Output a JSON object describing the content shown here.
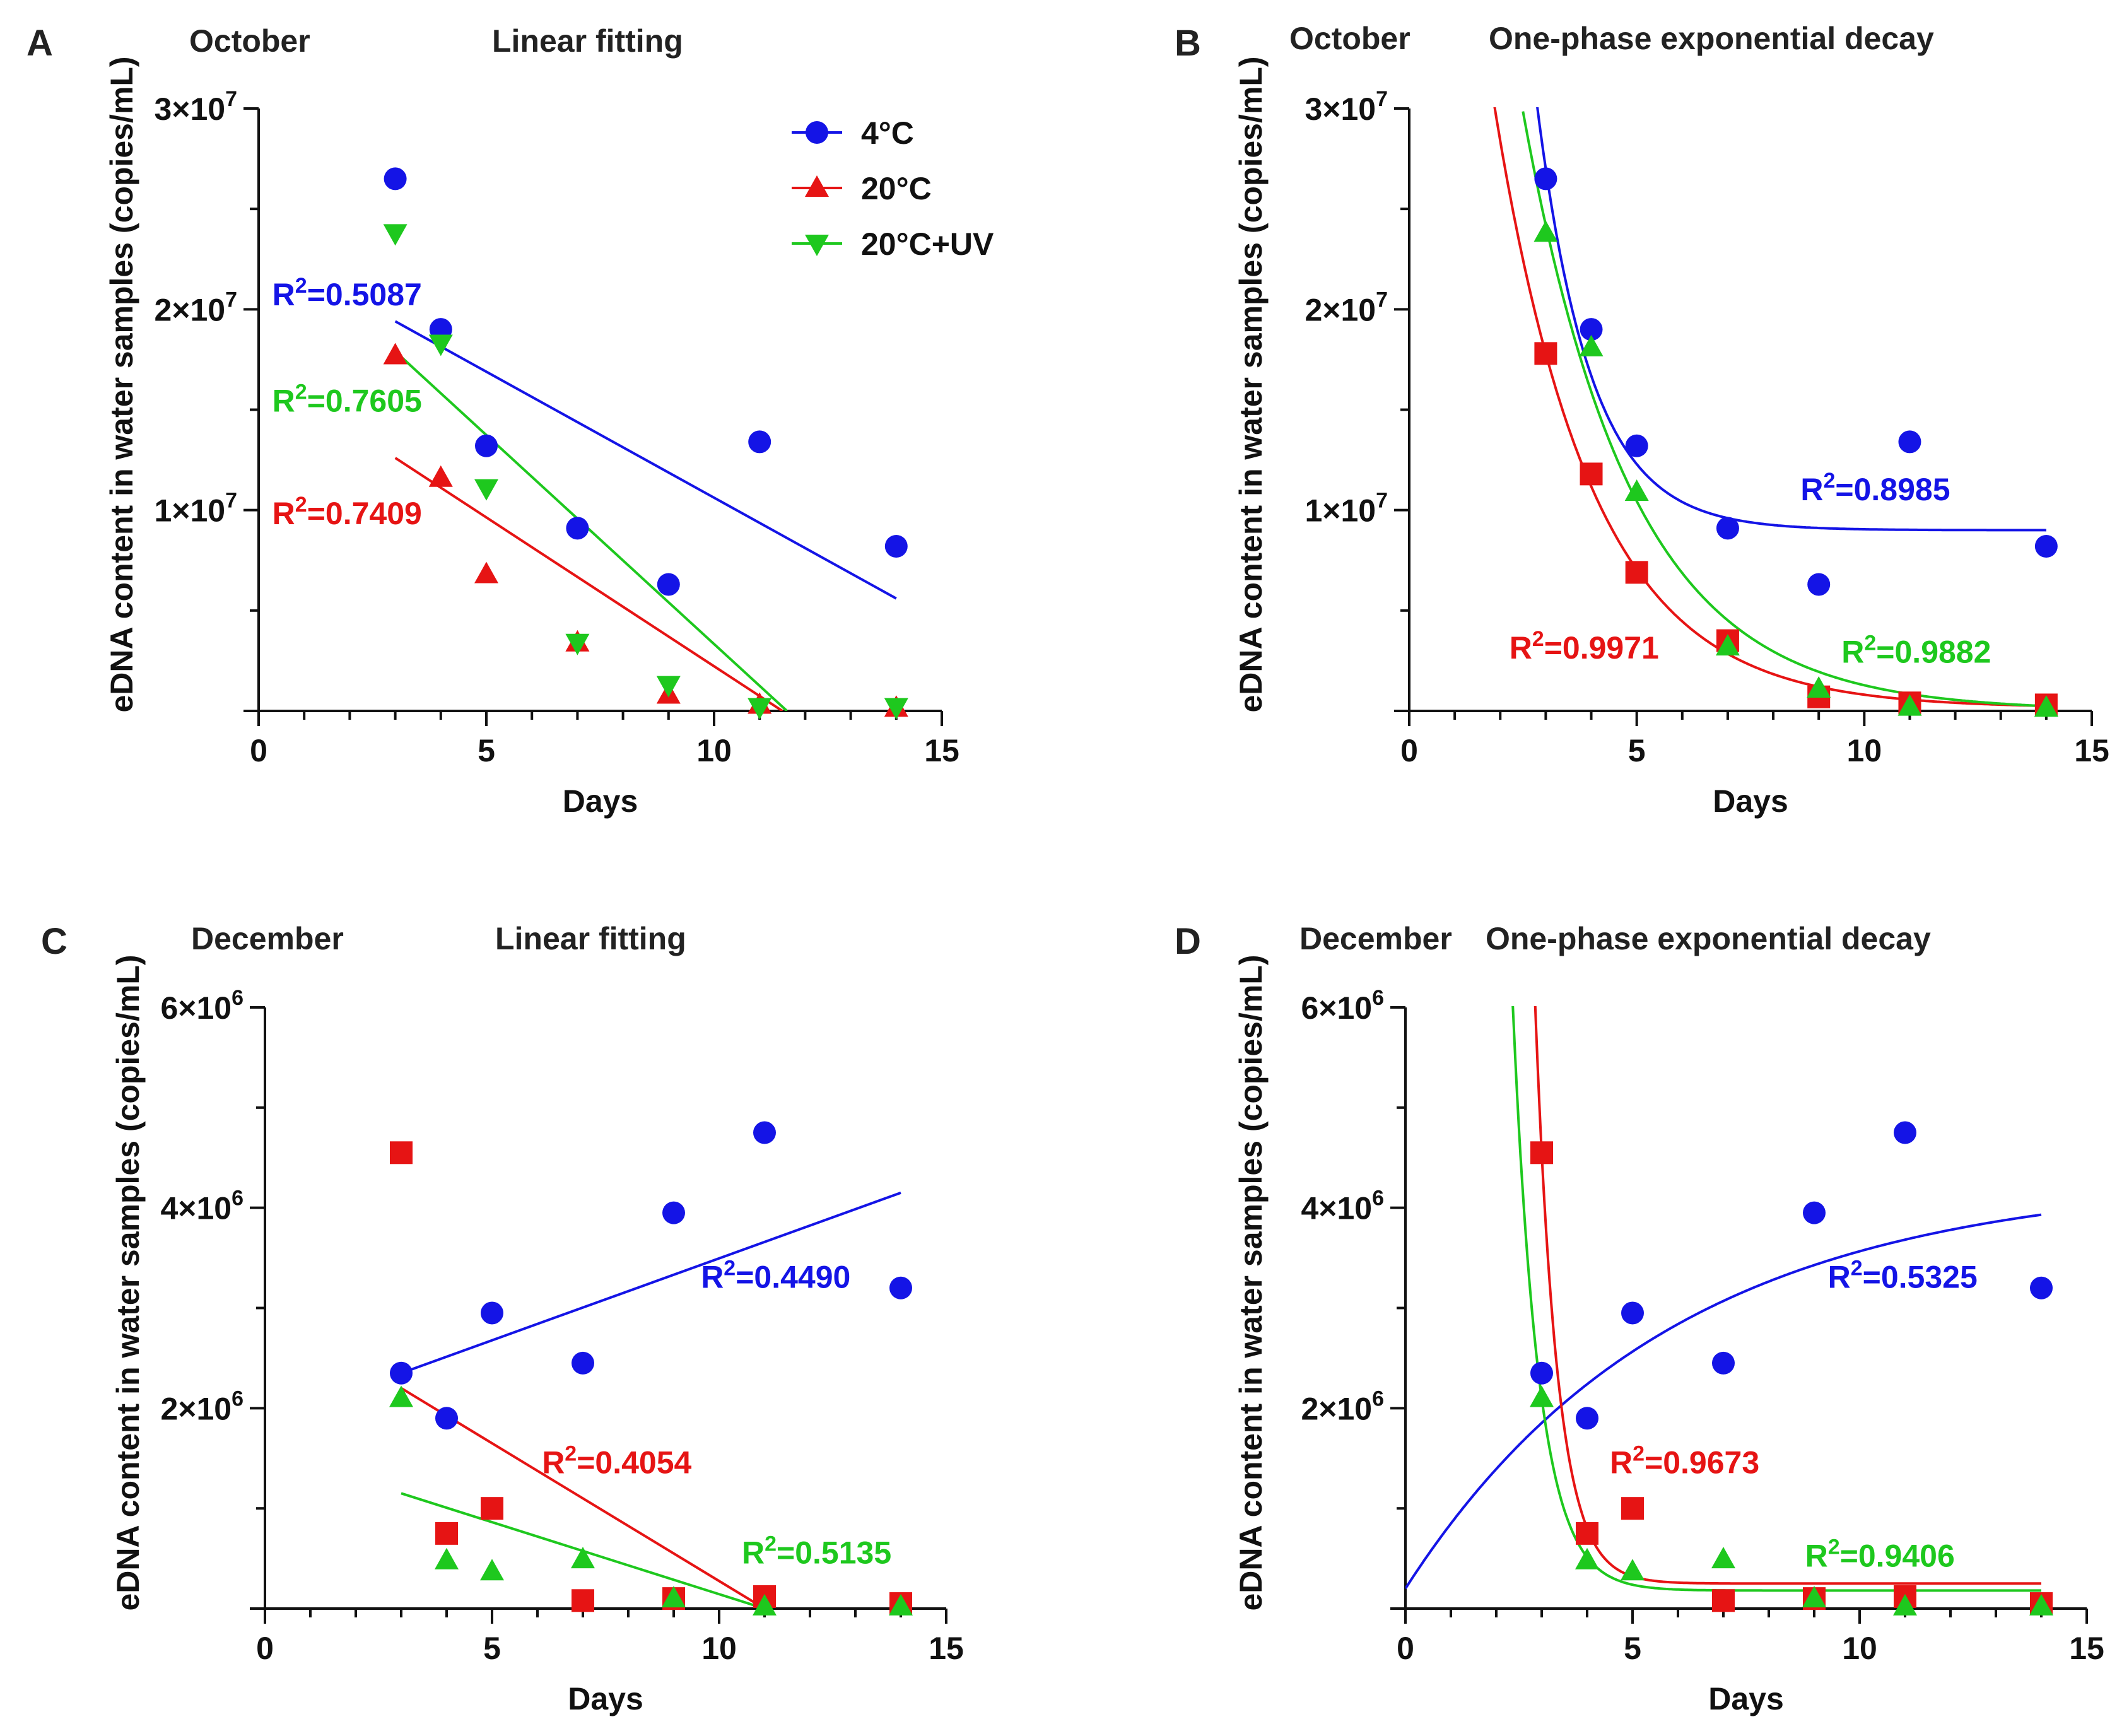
{
  "chart_data": [
    {
      "type": "scatter",
      "panel": "A",
      "month": "October",
      "method": "Linear fitting",
      "xlabel": "Days",
      "ylabel": "eDNA content in water samples (copies/mL)",
      "xlim": [
        0,
        15
      ],
      "ylim": [
        0,
        30000000
      ],
      "xticks": [
        "0",
        "5",
        "10",
        "15"
      ],
      "yticks": [
        {
          "value": 10000000,
          "mantissa": "1×10",
          "exp": "7"
        },
        {
          "value": 20000000,
          "mantissa": "2×10",
          "exp": "7"
        },
        {
          "value": 30000000,
          "mantissa": "3×10",
          "exp": "7"
        }
      ],
      "legend": {
        "position": "top-right",
        "show": true
      },
      "series": [
        {
          "name": "4°C",
          "color": "#1414e6",
          "marker": "circle",
          "x": [
            3,
            4,
            5,
            7,
            9,
            11,
            14
          ],
          "y": [
            26500000,
            19000000,
            13200000,
            9100000,
            6300000,
            13400000,
            8200000
          ],
          "fit": {
            "kind": "linear",
            "x0": 3,
            "x1": 14,
            "y0": 19400000,
            "y1": 5600000
          },
          "r2_text": "=0.5087",
          "r2_x": 0.3,
          "r2_y": 20200000
        },
        {
          "name": "20°C",
          "color": "#e61414",
          "marker": "triangle",
          "x": [
            3,
            4,
            5,
            7,
            9,
            11,
            14
          ],
          "y": [
            17700000,
            11600000,
            6800000,
            3400000,
            800000,
            300000,
            150000
          ],
          "fit": {
            "kind": "linear",
            "x0": 3,
            "x1": 11.5,
            "y0": 12600000,
            "y1": 0
          },
          "r2_text": "=0.7409",
          "r2_x": 0.3,
          "r2_y": 9300000
        },
        {
          "name": "20°C+UV",
          "color": "#1ec81e",
          "marker": "triangle-down",
          "x": [
            3,
            4,
            5,
            7,
            9,
            11,
            14
          ],
          "y": [
            23800000,
            18300000,
            11100000,
            3400000,
            1300000,
            200000,
            200000
          ],
          "fit": {
            "kind": "linear",
            "x0": 3,
            "x1": 11.6,
            "y0": 17900000,
            "y1": 0
          },
          "r2_text": "=0.7605",
          "r2_x": 0.3,
          "r2_y": 14900000
        }
      ]
    },
    {
      "type": "scatter",
      "panel": "B",
      "month": "October",
      "method": "One-phase exponential decay",
      "xlabel": "Days",
      "ylabel": "eDNA content in water samples (copies/mL)",
      "xlim": [
        0,
        15
      ],
      "ylim": [
        0,
        30000000
      ],
      "xticks": [
        "0",
        "5",
        "10",
        "15"
      ],
      "yticks": [
        {
          "value": 10000000,
          "mantissa": "1×10",
          "exp": "7"
        },
        {
          "value": 20000000,
          "mantissa": "2×10",
          "exp": "7"
        },
        {
          "value": 30000000,
          "mantissa": "3×10",
          "exp": "7"
        }
      ],
      "legend": {
        "show": false
      },
      "series": [
        {
          "name": "4°C",
          "color": "#1414e6",
          "marker": "circle",
          "x": [
            3,
            4,
            5,
            7,
            9,
            11,
            14
          ],
          "y": [
            26500000,
            19000000,
            13200000,
            9100000,
            6300000,
            13400000,
            8200000
          ],
          "fit": {
            "kind": "exp",
            "plateau": 9000000,
            "k": 0.85,
            "xref": 3,
            "yref": 27000000,
            "xstart": 2.6,
            "xend": 14
          },
          "r2_text": "=0.8985",
          "r2_x": 8.6,
          "r2_y": 10500000
        },
        {
          "name": "20°C",
          "color": "#e61414",
          "marker": "square",
          "x": [
            3,
            4,
            5,
            7,
            9,
            11,
            14
          ],
          "y": [
            17800000,
            11800000,
            6900000,
            3500000,
            700000,
            400000,
            300000
          ],
          "fit": {
            "kind": "exp",
            "plateau": 150000,
            "k": 0.47,
            "xref": 3,
            "yref": 17800000,
            "xstart": 1.8,
            "xend": 14
          },
          "r2_text": "=0.9971",
          "r2_x": 2.2,
          "r2_y": 2600000
        },
        {
          "name": "20°C+UV",
          "color": "#1ec81e",
          "marker": "triangle",
          "x": [
            3,
            4,
            5,
            7,
            9,
            11,
            14
          ],
          "y": [
            23800000,
            18100000,
            10900000,
            3200000,
            1100000,
            200000,
            150000
          ],
          "fit": {
            "kind": "exp",
            "plateau": 0,
            "k": 0.42,
            "xref": 3,
            "yref": 24200000,
            "xstart": 2.5,
            "xend": 14
          },
          "r2_text": "=0.9882",
          "r2_x": 9.5,
          "r2_y": 2400000
        }
      ]
    },
    {
      "type": "scatter",
      "panel": "C",
      "month": "December",
      "method": "Linear fitting",
      "xlabel": "Days",
      "ylabel": "eDNA content in water samples (copies/mL)",
      "xlim": [
        0,
        15
      ],
      "ylim": [
        0,
        6000000
      ],
      "xticks": [
        "0",
        "5",
        "10",
        "15"
      ],
      "yticks": [
        {
          "value": 2000000,
          "mantissa": "2×10",
          "exp": "6"
        },
        {
          "value": 4000000,
          "mantissa": "4×10",
          "exp": "6"
        },
        {
          "value": 6000000,
          "mantissa": "6×10",
          "exp": "6"
        }
      ],
      "legend": {
        "show": false
      },
      "series": [
        {
          "name": "4°C",
          "color": "#1414e6",
          "marker": "circle",
          "x": [
            3,
            4,
            5,
            7,
            9,
            11,
            14
          ],
          "y": [
            2350000,
            1900000,
            2950000,
            2450000,
            3950000,
            4750000,
            3200000
          ],
          "fit": {
            "kind": "linear",
            "x0": 3,
            "x1": 14,
            "y0": 2350000,
            "y1": 4150000
          },
          "r2_text": "=0.4490",
          "r2_x": 9.6,
          "r2_y": 3200000
        },
        {
          "name": "20°C",
          "color": "#e61414",
          "marker": "square",
          "x": [
            3,
            4,
            5,
            7,
            9,
            11,
            14
          ],
          "y": [
            4550000,
            750000,
            1000000,
            80000,
            100000,
            120000,
            50000
          ],
          "fit": {
            "kind": "linear",
            "x0": 3,
            "x1": 11,
            "y0": 2200000,
            "y1": 0
          },
          "r2_text": "=0.4054",
          "r2_x": 6.1,
          "r2_y": 1350000
        },
        {
          "name": "20°C+UV",
          "color": "#1ec81e",
          "marker": "triangle",
          "x": [
            3,
            4,
            5,
            7,
            9,
            11,
            14
          ],
          "y": [
            2100000,
            480000,
            370000,
            490000,
            100000,
            20000,
            20000
          ],
          "fit": {
            "kind": "linear",
            "x0": 3,
            "x1": 11,
            "y0": 1150000,
            "y1": 0
          },
          "r2_text": "=0.5135",
          "r2_x": 10.5,
          "r2_y": 450000
        }
      ]
    },
    {
      "type": "scatter",
      "panel": "D",
      "month": "December",
      "method": "One-phase exponential decay",
      "xlabel": "Days",
      "ylabel": "eDNA content in water samples (copies/mL)",
      "xlim": [
        0,
        15
      ],
      "ylim": [
        0,
        6000000
      ],
      "xticks": [
        "0",
        "5",
        "10",
        "15"
      ],
      "yticks": [
        {
          "value": 2000000,
          "mantissa": "2×10",
          "exp": "6"
        },
        {
          "value": 4000000,
          "mantissa": "4×10",
          "exp": "6"
        },
        {
          "value": 6000000,
          "mantissa": "6×10",
          "exp": "6"
        }
      ],
      "legend": {
        "show": false
      },
      "series": [
        {
          "name": "4°C",
          "color": "#1414e6",
          "marker": "circle",
          "x": [
            3,
            4,
            5,
            7,
            9,
            11,
            14
          ],
          "y": [
            2350000,
            1900000,
            2950000,
            2450000,
            3950000,
            4750000,
            3200000
          ],
          "fit": {
            "kind": "exp",
            "plateau": 4300000,
            "k": 0.172,
            "xref": 0,
            "yref": 200000,
            "xstart": 0,
            "xend": 14
          },
          "r2_text": "=0.5325",
          "r2_x": 9.3,
          "r2_y": 3200000
        },
        {
          "name": "20°C",
          "color": "#e61414",
          "marker": "square",
          "x": [
            3,
            4,
            5,
            7,
            9,
            11,
            14
          ],
          "y": [
            4550000,
            750000,
            1000000,
            80000,
            100000,
            120000,
            50000
          ],
          "fit": {
            "kind": "exp",
            "plateau": 250000,
            "k": 2.05,
            "xref": 3,
            "yref": 4550000,
            "xstart": 2.8,
            "xend": 14
          },
          "r2_text": "=0.9673",
          "r2_x": 4.5,
          "r2_y": 1350000
        },
        {
          "name": "20°C+UV",
          "color": "#1ec81e",
          "marker": "triangle",
          "x": [
            3,
            4,
            5,
            7,
            9,
            11,
            14
          ],
          "y": [
            2100000,
            480000,
            370000,
            490000,
            100000,
            20000,
            20000
          ],
          "fit": {
            "kind": "exp",
            "plateau": 180000,
            "k": 1.75,
            "xref": 3,
            "yref": 2100000,
            "xstart": 2.3,
            "xend": 14
          },
          "r2_text": "=0.9406",
          "r2_x": 8.8,
          "r2_y": 420000
        }
      ]
    }
  ]
}
